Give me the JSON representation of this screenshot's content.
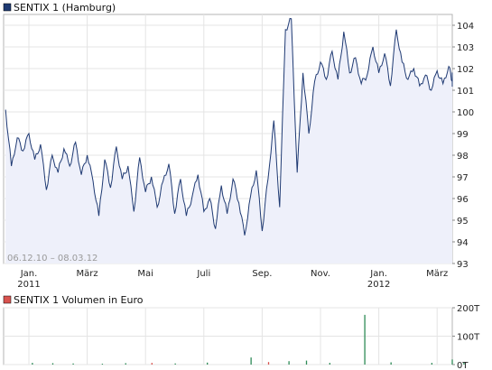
{
  "chart_data": [
    {
      "type": "area",
      "legend_label": "SENTIX 1 (Hamburg)",
      "line_color": "#1f3a73",
      "fill_color": "#eef0fa",
      "date_range_label": "06.12.10 – 08.03.12",
      "ylim": [
        93,
        104.5
      ],
      "y_ticks": [
        "93",
        "94",
        "95",
        "96",
        "97",
        "98",
        "99",
        "100",
        "101",
        "102",
        "103",
        "104"
      ],
      "x_ticks": [
        {
          "label": "Jan.",
          "sub": "2011",
          "month": 1
        },
        {
          "label": "März",
          "sub": "",
          "month": 3
        },
        {
          "label": "Mai",
          "sub": "",
          "month": 5
        },
        {
          "label": "Juli",
          "sub": "",
          "month": 7
        },
        {
          "label": "Sep.",
          "sub": "",
          "month": 9
        },
        {
          "label": "Nov.",
          "sub": "",
          "month": 11
        },
        {
          "label": "Jan.",
          "sub": "2012",
          "month": 13
        },
        {
          "label": "März",
          "sub": "",
          "month": 15
        }
      ],
      "grid": true,
      "series": [
        {
          "x": [
            -0.8,
            -0.6,
            -0.4,
            -0.2,
            0.0,
            0.2,
            0.4,
            0.6,
            0.8,
            1.0,
            1.2,
            1.4,
            1.6,
            1.8,
            2.0,
            2.2,
            2.4,
            2.6,
            2.8,
            3.0,
            3.2,
            3.4,
            3.6,
            3.8,
            4.0,
            4.2,
            4.4,
            4.6,
            4.8,
            5.0,
            5.2,
            5.4,
            5.6,
            5.8,
            6.0,
            6.2,
            6.4,
            6.6,
            6.8,
            7.0,
            7.2,
            7.4,
            7.6,
            7.8,
            8.0,
            8.2,
            8.4,
            8.6,
            8.8,
            9.0,
            9.2,
            9.4,
            9.6,
            9.8,
            10.0,
            10.2,
            10.4,
            10.6,
            10.8,
            11.0,
            11.2,
            11.4,
            11.6,
            11.8,
            12.0,
            12.2,
            12.4,
            12.6,
            12.8,
            13.0,
            13.2,
            13.4,
            13.6,
            13.8,
            14.0,
            14.2,
            14.4,
            14.6,
            14.8,
            15.0,
            15.2
          ],
          "values": [
            100.1,
            97.5,
            98.8,
            98.2,
            99.0,
            97.8,
            98.5,
            96.4,
            98.0,
            97.2,
            98.3,
            97.5,
            98.6,
            97.1,
            98.0,
            96.8,
            95.2,
            97.8,
            96.5,
            98.4,
            96.9,
            97.5,
            95.4,
            97.9,
            96.3,
            97.0,
            95.6,
            96.8,
            97.6,
            95.3,
            96.9,
            95.2,
            96.1,
            97.1,
            95.4,
            96.0,
            94.6,
            96.6,
            95.3,
            96.9,
            95.8,
            94.3,
            96.1,
            97.3,
            94.5,
            96.9,
            99.6,
            95.6,
            103.8,
            104.3,
            97.2,
            101.8,
            99.0,
            101.4,
            102.3,
            101.5,
            102.8,
            101.5,
            103.7,
            101.8,
            102.5,
            101.3,
            101.7,
            103.0,
            101.8,
            102.7,
            101.2,
            103.8,
            102.3,
            101.5,
            102.0,
            101.2,
            101.7,
            101.0,
            101.9,
            101.3,
            102.1,
            101.4,
            101.8,
            101.3,
            101.3
          ]
        }
      ]
    },
    {
      "type": "bar",
      "legend_label": "SENTIX 1 Volumen in Euro",
      "legend_color": "#d9534f",
      "y_ticks": [
        "0T",
        "100T",
        "200T"
      ],
      "ylim": [
        0,
        200
      ],
      "bars": [
        {
          "x": 0.1,
          "v": 6,
          "c": "#2e8b57"
        },
        {
          "x": 0.8,
          "v": 5,
          "c": "#2e8b57"
        },
        {
          "x": 1.5,
          "v": 4,
          "c": "#2e8b57"
        },
        {
          "x": 2.5,
          "v": 3,
          "c": "#2e8b57"
        },
        {
          "x": 3.3,
          "v": 5,
          "c": "#2e8b57"
        },
        {
          "x": 4.2,
          "v": 6,
          "c": "#d9534f"
        },
        {
          "x": 5.0,
          "v": 4,
          "c": "#2e8b57"
        },
        {
          "x": 6.1,
          "v": 7,
          "c": "#2e8b57"
        },
        {
          "x": 7.6,
          "v": 25,
          "c": "#2e8b57"
        },
        {
          "x": 8.2,
          "v": 9,
          "c": "#d9534f"
        },
        {
          "x": 8.9,
          "v": 12,
          "c": "#2e8b57"
        },
        {
          "x": 9.5,
          "v": 14,
          "c": "#2e8b57"
        },
        {
          "x": 10.3,
          "v": 6,
          "c": "#2e8b57"
        },
        {
          "x": 11.5,
          "v": 175,
          "c": "#2e8b57"
        },
        {
          "x": 12.4,
          "v": 8,
          "c": "#2e8b57"
        },
        {
          "x": 13.8,
          "v": 6,
          "c": "#2e8b57"
        },
        {
          "x": 14.5,
          "v": 18,
          "c": "#2e8b57"
        },
        {
          "x": 14.9,
          "v": 7,
          "c": "#2e8b57"
        }
      ]
    }
  ]
}
